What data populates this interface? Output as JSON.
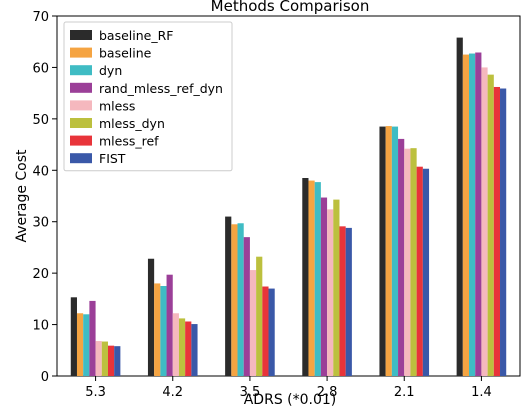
{
  "chart_data": {
    "type": "bar",
    "title": "Methods Comparison",
    "xlabel": "ADRS (*0.01)",
    "ylabel": "Average Cost",
    "categories": [
      "5.3",
      "4.2",
      "3.5",
      "2.8",
      "2.1",
      "1.4"
    ],
    "ylim": [
      0,
      70
    ],
    "yticks": [
      0,
      10,
      20,
      30,
      40,
      50,
      60,
      70
    ],
    "grid": false,
    "legend_position": "top-left",
    "series": [
      {
        "name": "baseline_RF",
        "color": "#2b2b2b",
        "values": [
          15.3,
          22.8,
          31.0,
          38.5,
          48.5,
          65.8
        ]
      },
      {
        "name": "baseline",
        "color": "#f5a442",
        "values": [
          12.2,
          18.0,
          29.5,
          38.0,
          48.6,
          62.5
        ]
      },
      {
        "name": "dyn",
        "color": "#3fbcc4",
        "values": [
          12.0,
          17.5,
          29.7,
          37.7,
          48.5,
          62.7
        ]
      },
      {
        "name": "rand_mless_ref_dyn",
        "color": "#9b3f98",
        "values": [
          14.6,
          19.7,
          27.0,
          34.7,
          46.1,
          62.9
        ]
      },
      {
        "name": "mless",
        "color": "#f5b8be",
        "values": [
          6.8,
          12.2,
          20.6,
          32.4,
          44.2,
          60.0
        ]
      },
      {
        "name": "mless_dyn",
        "color": "#bcc03e",
        "values": [
          6.7,
          11.2,
          23.2,
          34.3,
          44.3,
          58.6
        ]
      },
      {
        "name": "mless_ref",
        "color": "#e8343a",
        "values": [
          5.9,
          10.6,
          17.4,
          29.1,
          40.7,
          56.2
        ]
      },
      {
        "name": "FIST",
        "color": "#3a58a8",
        "values": [
          5.8,
          10.1,
          17.0,
          28.8,
          40.3,
          55.9
        ]
      }
    ]
  }
}
